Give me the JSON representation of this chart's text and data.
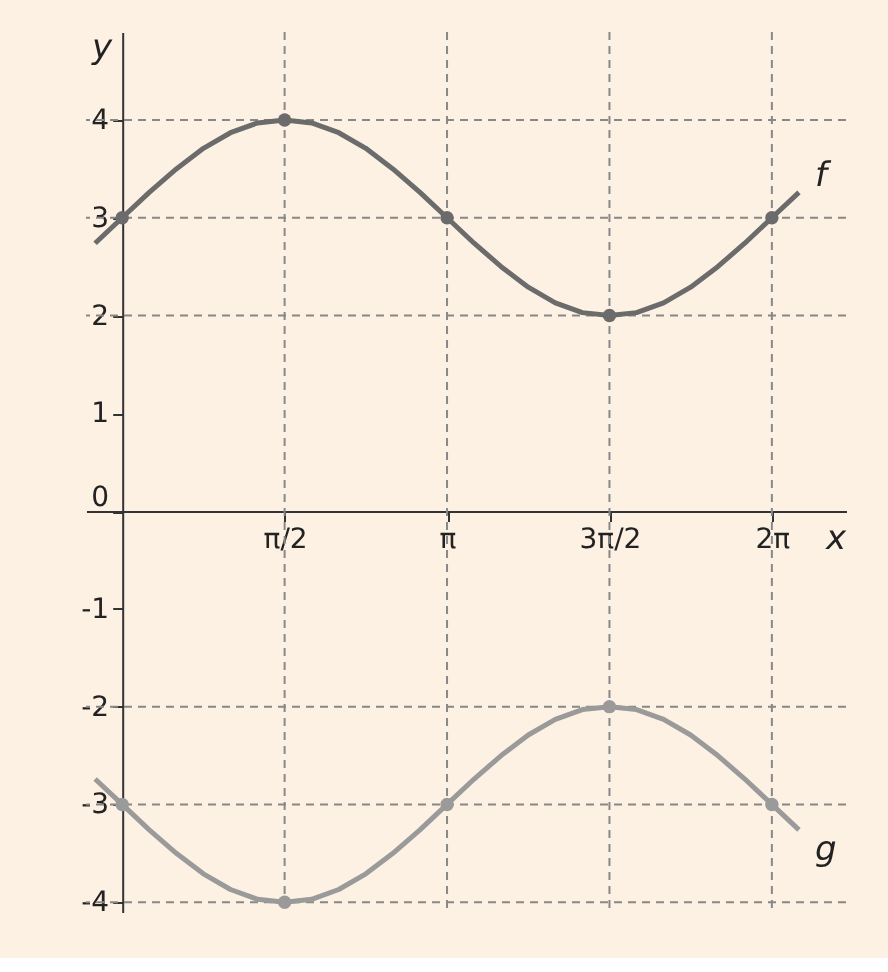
{
  "chart_data": {
    "type": "line",
    "xlabel": "x",
    "ylabel": "y",
    "xlim": [
      -0.35,
      7.0
    ],
    "ylim": [
      -4.1,
      4.9
    ],
    "xticks": [
      {
        "value": 1.5708,
        "label": "π/2"
      },
      {
        "value": 3.1416,
        "label": "π"
      },
      {
        "value": 4.7124,
        "label": "3π/2"
      },
      {
        "value": 6.2832,
        "label": "2π"
      }
    ],
    "yticks": [
      -4,
      -3,
      -2,
      -1,
      0,
      1,
      2,
      3,
      4
    ],
    "grid": false,
    "line_style": "solid",
    "marker": "none",
    "series": [
      {
        "name": "f",
        "color": "#6b6b6b",
        "x": [
          -0.2618,
          0,
          0.2618,
          0.5236,
          0.7854,
          1.0472,
          1.309,
          1.5708,
          1.8326,
          2.0944,
          2.3562,
          2.618,
          2.8798,
          3.1416,
          3.4034,
          3.6652,
          3.927,
          4.1888,
          4.4506,
          4.7124,
          4.9742,
          5.236,
          5.4978,
          5.7596,
          6.0214,
          6.2832,
          6.545
        ],
        "values": [
          2.74,
          3,
          3.26,
          3.5,
          3.71,
          3.87,
          3.97,
          4,
          3.97,
          3.87,
          3.71,
          3.5,
          3.26,
          3,
          2.74,
          2.5,
          2.29,
          2.13,
          2.03,
          2,
          2.03,
          2.13,
          2.29,
          2.5,
          2.74,
          3,
          3.26
        ]
      },
      {
        "name": "g",
        "color": "#9a9a9a",
        "x": [
          -0.2618,
          0,
          0.2618,
          0.5236,
          0.7854,
          1.0472,
          1.309,
          1.5708,
          1.8326,
          2.0944,
          2.3562,
          2.618,
          2.8798,
          3.1416,
          3.4034,
          3.6652,
          3.927,
          4.1888,
          4.4506,
          4.7124,
          4.9742,
          5.236,
          5.4978,
          5.7596,
          6.0214,
          6.2832,
          6.545
        ],
        "values": [
          -2.74,
          -3,
          -3.26,
          -3.5,
          -3.71,
          -3.87,
          -3.97,
          -4,
          -3.97,
          -3.87,
          -3.71,
          -3.5,
          -3.26,
          -3,
          -2.74,
          -2.5,
          -2.29,
          -2.13,
          -2.03,
          -2,
          -2.03,
          -2.13,
          -2.29,
          -2.5,
          -2.74,
          -3,
          -3.26
        ]
      },
      {
        "type": "scatter",
        "marker": "circle",
        "color": "#6b6b6b",
        "x": [
          0,
          1.5708,
          3.1416,
          4.7124,
          6.2832
        ],
        "values": [
          3,
          4,
          3,
          2,
          3
        ]
      },
      {
        "type": "scatter",
        "marker": "circle",
        "color": "#9a9a9a",
        "x": [
          0,
          1.5708,
          3.1416,
          4.7124,
          6.2832
        ],
        "values": [
          -3,
          -4,
          -3,
          -2,
          -3
        ]
      }
    ],
    "ref_lines": [
      {
        "axis": "x",
        "value": 1.5708,
        "color": "#888888",
        "line_style": "dashed"
      },
      {
        "axis": "x",
        "value": 3.1416,
        "color": "#888888",
        "line_style": "dashed"
      },
      {
        "axis": "x",
        "value": 4.7124,
        "color": "#888888",
        "line_style": "dashed"
      },
      {
        "axis": "x",
        "value": 6.2832,
        "color": "#888888",
        "line_style": "dashed"
      },
      {
        "axis": "y",
        "value": 4,
        "color": "#888888",
        "line_style": "dashed"
      },
      {
        "axis": "y",
        "value": 3,
        "color": "#888888",
        "line_style": "dashed"
      },
      {
        "axis": "y",
        "value": 2,
        "color": "#888888",
        "line_style": "dashed"
      },
      {
        "axis": "y",
        "value": -2,
        "color": "#888888",
        "line_style": "dashed"
      },
      {
        "axis": "y",
        "value": -3,
        "color": "#888888",
        "line_style": "dashed"
      },
      {
        "axis": "y",
        "value": -4,
        "color": "#888888",
        "line_style": "dashed"
      }
    ]
  }
}
